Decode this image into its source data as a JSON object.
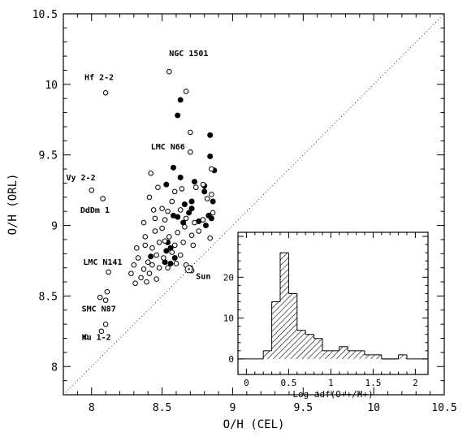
{
  "chart_data": [
    {
      "type": "scatter",
      "xlabel": "O/H (CEL)",
      "ylabel": "O/H (ORL)",
      "xlim": [
        7.8,
        10.5
      ],
      "ylim": [
        7.8,
        10.5
      ],
      "xticks": [
        "8",
        "8.5",
        "9",
        "9.5",
        "10",
        "10.5"
      ],
      "yticks": [
        "8",
        "8.5",
        "9",
        "9.5",
        "10",
        "10.5"
      ],
      "grid": false,
      "reference_line": {
        "style": "dotted",
        "from": [
          7.8,
          7.8
        ],
        "to": [
          10.5,
          10.5
        ]
      },
      "series": [
        {
          "marker": "filled-circle",
          "points": [
            [
              8.63,
              9.89
            ],
            [
              8.61,
              9.78
            ],
            [
              8.84,
              9.64
            ],
            [
              8.84,
              9.49
            ],
            [
              8.58,
              9.41
            ],
            [
              8.63,
              9.34
            ],
            [
              8.87,
              9.39
            ],
            [
              8.73,
              9.31
            ],
            [
              8.8,
              9.28
            ],
            [
              8.53,
              9.29
            ],
            [
              8.71,
              9.17
            ],
            [
              8.66,
              9.15
            ],
            [
              8.86,
              9.17
            ],
            [
              8.8,
              9.24
            ],
            [
              8.58,
              9.07
            ],
            [
              8.71,
              9.12
            ],
            [
              8.69,
              9.09
            ],
            [
              8.76,
              9.03
            ],
            [
              8.83,
              9.07
            ],
            [
              8.61,
              9.06
            ],
            [
              8.65,
              9.02
            ],
            [
              8.81,
              9.0
            ],
            [
              8.85,
              9.05
            ],
            [
              8.54,
              8.88
            ],
            [
              8.56,
              8.84
            ],
            [
              8.53,
              8.82
            ],
            [
              8.59,
              8.77
            ],
            [
              8.42,
              8.78
            ],
            [
              8.56,
              8.73
            ],
            [
              8.52,
              8.74
            ]
          ]
        },
        {
          "marker": "open-circle",
          "points": [
            [
              8.55,
              10.09
            ],
            [
              8.1,
              9.94
            ],
            [
              8.67,
              9.95
            ],
            [
              8.7,
              9.66
            ],
            [
              8.7,
              9.52
            ],
            [
              8.85,
              9.4
            ],
            [
              8.0,
              9.25
            ],
            [
              8.08,
              9.19
            ],
            [
              8.42,
              9.37
            ],
            [
              8.47,
              9.27
            ],
            [
              8.59,
              9.24
            ],
            [
              8.41,
              9.2
            ],
            [
              8.44,
              9.11
            ],
            [
              8.5,
              9.12
            ],
            [
              8.57,
              9.17
            ],
            [
              8.64,
              9.26
            ],
            [
              8.74,
              9.27
            ],
            [
              8.79,
              9.29
            ],
            [
              8.82,
              9.19
            ],
            [
              8.85,
              9.22
            ],
            [
              8.37,
              9.02
            ],
            [
              8.45,
              9.05
            ],
            [
              8.52,
              9.04
            ],
            [
              8.54,
              9.1
            ],
            [
              8.63,
              9.11
            ],
            [
              8.67,
              9.05
            ],
            [
              8.73,
              9.02
            ],
            [
              8.79,
              9.04
            ],
            [
              8.86,
              9.09
            ],
            [
              8.38,
              8.92
            ],
            [
              8.45,
              8.96
            ],
            [
              8.5,
              8.98
            ],
            [
              8.55,
              8.92
            ],
            [
              8.61,
              8.95
            ],
            [
              8.66,
              8.99
            ],
            [
              8.71,
              8.93
            ],
            [
              8.76,
              8.96
            ],
            [
              8.84,
              8.91
            ],
            [
              8.32,
              8.84
            ],
            [
              8.38,
              8.86
            ],
            [
              8.43,
              8.84
            ],
            [
              8.48,
              8.88
            ],
            [
              8.52,
              8.89
            ],
            [
              8.59,
              8.86
            ],
            [
              8.65,
              8.88
            ],
            [
              8.72,
              8.86
            ],
            [
              8.33,
              8.77
            ],
            [
              8.4,
              8.74
            ],
            [
              8.46,
              8.79
            ],
            [
              8.51,
              8.77
            ],
            [
              8.57,
              8.81
            ],
            [
              8.63,
              8.79
            ],
            [
              8.3,
              8.72
            ],
            [
              8.37,
              8.69
            ],
            [
              8.43,
              8.72
            ],
            [
              8.48,
              8.7
            ],
            [
              8.54,
              8.7
            ],
            [
              8.6,
              8.73
            ],
            [
              8.35,
              8.63
            ],
            [
              8.41,
              8.66
            ],
            [
              8.46,
              8.62
            ],
            [
              8.28,
              8.66
            ],
            [
              8.67,
              8.72
            ],
            [
              8.7,
              8.7
            ],
            [
              8.71,
              8.68
            ],
            [
              8.31,
              8.59
            ],
            [
              8.39,
              8.6
            ],
            [
              8.12,
              8.67
            ],
            [
              8.06,
              8.49
            ],
            [
              8.11,
              8.53
            ],
            [
              8.1,
              8.47
            ],
            [
              8.1,
              8.3
            ],
            [
              8.07,
              8.25
            ],
            [
              7.96,
              8.21
            ]
          ]
        }
      ],
      "annotations": [
        {
          "text": "NGC 1501",
          "x": 8.55,
          "y": 10.2
        },
        {
          "text": "Hf 2-2",
          "x": 7.95,
          "y": 10.03
        },
        {
          "text": "LMC N66",
          "x": 8.42,
          "y": 9.54
        },
        {
          "text": "Vy 2-2",
          "x": 7.82,
          "y": 9.32
        },
        {
          "text": "DdDm 1",
          "x": 7.92,
          "y": 9.09
        },
        {
          "text": "LMC N141",
          "x": 7.94,
          "y": 8.72
        },
        {
          "text": "Sun",
          "x": 8.74,
          "y": 8.62
        },
        {
          "text": "SMC N87",
          "x": 7.93,
          "y": 8.39
        },
        {
          "text": "Hu 1-2",
          "x": 7.93,
          "y": 8.19
        }
      ],
      "sun_point": [
        8.69,
        8.69
      ]
    },
    {
      "type": "bar",
      "xlabel": "Log adf(O++/H+)",
      "ylabel": "",
      "xlim": [
        -0.1,
        2.15
      ],
      "ylim": [
        -3.8,
        31
      ],
      "xticks": [
        "0",
        "0.5",
        "1",
        "1.5",
        "2"
      ],
      "yticks": [
        "0",
        "10",
        "20"
      ],
      "bin_width": 0.1,
      "bins": [
        {
          "start": 0.2,
          "count": 2
        },
        {
          "start": 0.3,
          "count": 14
        },
        {
          "start": 0.4,
          "count": 26
        },
        {
          "start": 0.5,
          "count": 16
        },
        {
          "start": 0.6,
          "count": 7
        },
        {
          "start": 0.7,
          "count": 6
        },
        {
          "start": 0.8,
          "count": 5
        },
        {
          "start": 0.9,
          "count": 2
        },
        {
          "start": 1.0,
          "count": 2
        },
        {
          "start": 1.1,
          "count": 3
        },
        {
          "start": 1.2,
          "count": 2
        },
        {
          "start": 1.3,
          "count": 2
        },
        {
          "start": 1.4,
          "count": 1
        },
        {
          "start": 1.5,
          "count": 1
        },
        {
          "start": 1.6,
          "count": 0
        },
        {
          "start": 1.7,
          "count": 0
        },
        {
          "start": 1.8,
          "count": 1
        }
      ],
      "fill": "hatched"
    }
  ]
}
